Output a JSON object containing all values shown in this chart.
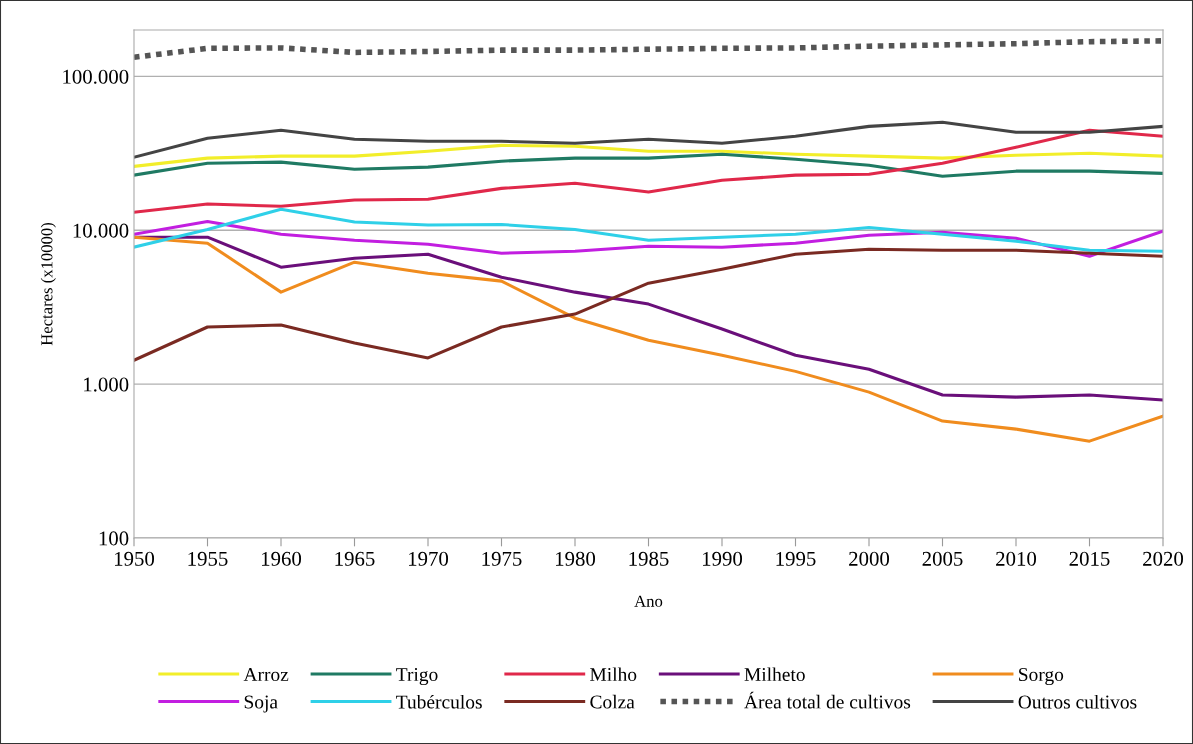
{
  "chart_data": {
    "type": "line",
    "xlabel": "Ano",
    "ylabel": "Hectares (x10000)",
    "log": "y",
    "grid": "y",
    "legend": "bottom",
    "line_style": "solid",
    "marker": "none",
    "x": [
      1950,
      1955,
      1960,
      1965,
      1970,
      1975,
      1980,
      1985,
      1990,
      1995,
      2000,
      2005,
      2010,
      2015,
      2020
    ],
    "xlim": [
      1950,
      2020
    ],
    "xticks": [
      1950,
      1955,
      1960,
      1965,
      1970,
      1975,
      1980,
      1985,
      1990,
      1995,
      2000,
      2005,
      2010,
      2015,
      2020
    ],
    "ylim": [
      100,
      200000
    ],
    "yticks": [
      {
        "value": 100,
        "label": "100"
      },
      {
        "value": 1000,
        "label": "1.000"
      },
      {
        "value": 10000,
        "label": "10.000"
      },
      {
        "value": 100000,
        "label": "100.000"
      }
    ],
    "series": [
      {
        "name": "Arroz",
        "color": "#f2ee2a",
        "values": [
          26000,
          29400,
          30300,
          30300,
          32600,
          35600,
          35100,
          32600,
          32600,
          31200,
          30300,
          29400,
          30700,
          31600,
          30300
        ]
      },
      {
        "name": "Trigo",
        "color": "#1f7a63",
        "values": [
          22800,
          27200,
          27700,
          24900,
          25700,
          28100,
          29400,
          29400,
          31200,
          28900,
          26400,
          22400,
          24200,
          24200,
          23400
        ]
      },
      {
        "name": "Milho",
        "color": "#e0284a",
        "values": [
          13100,
          14800,
          14300,
          15700,
          15900,
          18700,
          20200,
          17700,
          21100,
          22800,
          23100,
          27200,
          34600,
          44600,
          40800
        ]
      },
      {
        "name": "Milheto",
        "color": "#6a0f7a",
        "values": [
          9010,
          9010,
          5750,
          6580,
          6980,
          4950,
          3960,
          3310,
          2280,
          1540,
          1250,
          849,
          823,
          849,
          788
        ]
      },
      {
        "name": "Sorgo",
        "color": "#f08c1e",
        "values": [
          9010,
          8240,
          3960,
          6200,
          5260,
          4670,
          2680,
          1930,
          1540,
          1210,
          887,
          575,
          510,
          426,
          620
        ]
      },
      {
        "name": "Soja",
        "color": "#c21ee0",
        "values": [
          9420,
          11400,
          9420,
          8610,
          8110,
          7090,
          7310,
          7870,
          7760,
          8240,
          9280,
          9710,
          8870,
          6780,
          9860
        ]
      },
      {
        "name": "Tubérculos",
        "color": "#2fd0e8",
        "values": [
          7760,
          10100,
          13700,
          11300,
          10800,
          10900,
          10100,
          8610,
          9010,
          9420,
          10400,
          9420,
          8490,
          7410,
          7310
        ]
      },
      {
        "name": "Colza",
        "color": "#7a2a22",
        "values": [
          1430,
          2350,
          2420,
          1850,
          1480,
          2350,
          2850,
          4530,
          5580,
          6980,
          7530,
          7410,
          7410,
          7090,
          6780
        ]
      },
      {
        "name": "Área total de cultivos",
        "color": "#555555",
        "line_style": "dotted",
        "values": [
          133000,
          152000,
          153000,
          143000,
          145000,
          148000,
          148000,
          150000,
          152000,
          153000,
          157000,
          160000,
          163000,
          168000,
          170000
        ]
      },
      {
        "name": "Outros cultivos",
        "color": "#444444",
        "values": [
          29800,
          39600,
          44600,
          39000,
          37800,
          37800,
          36700,
          39000,
          36700,
          40800,
          47300,
          50300,
          43300,
          43300,
          47300
        ]
      }
    ]
  }
}
